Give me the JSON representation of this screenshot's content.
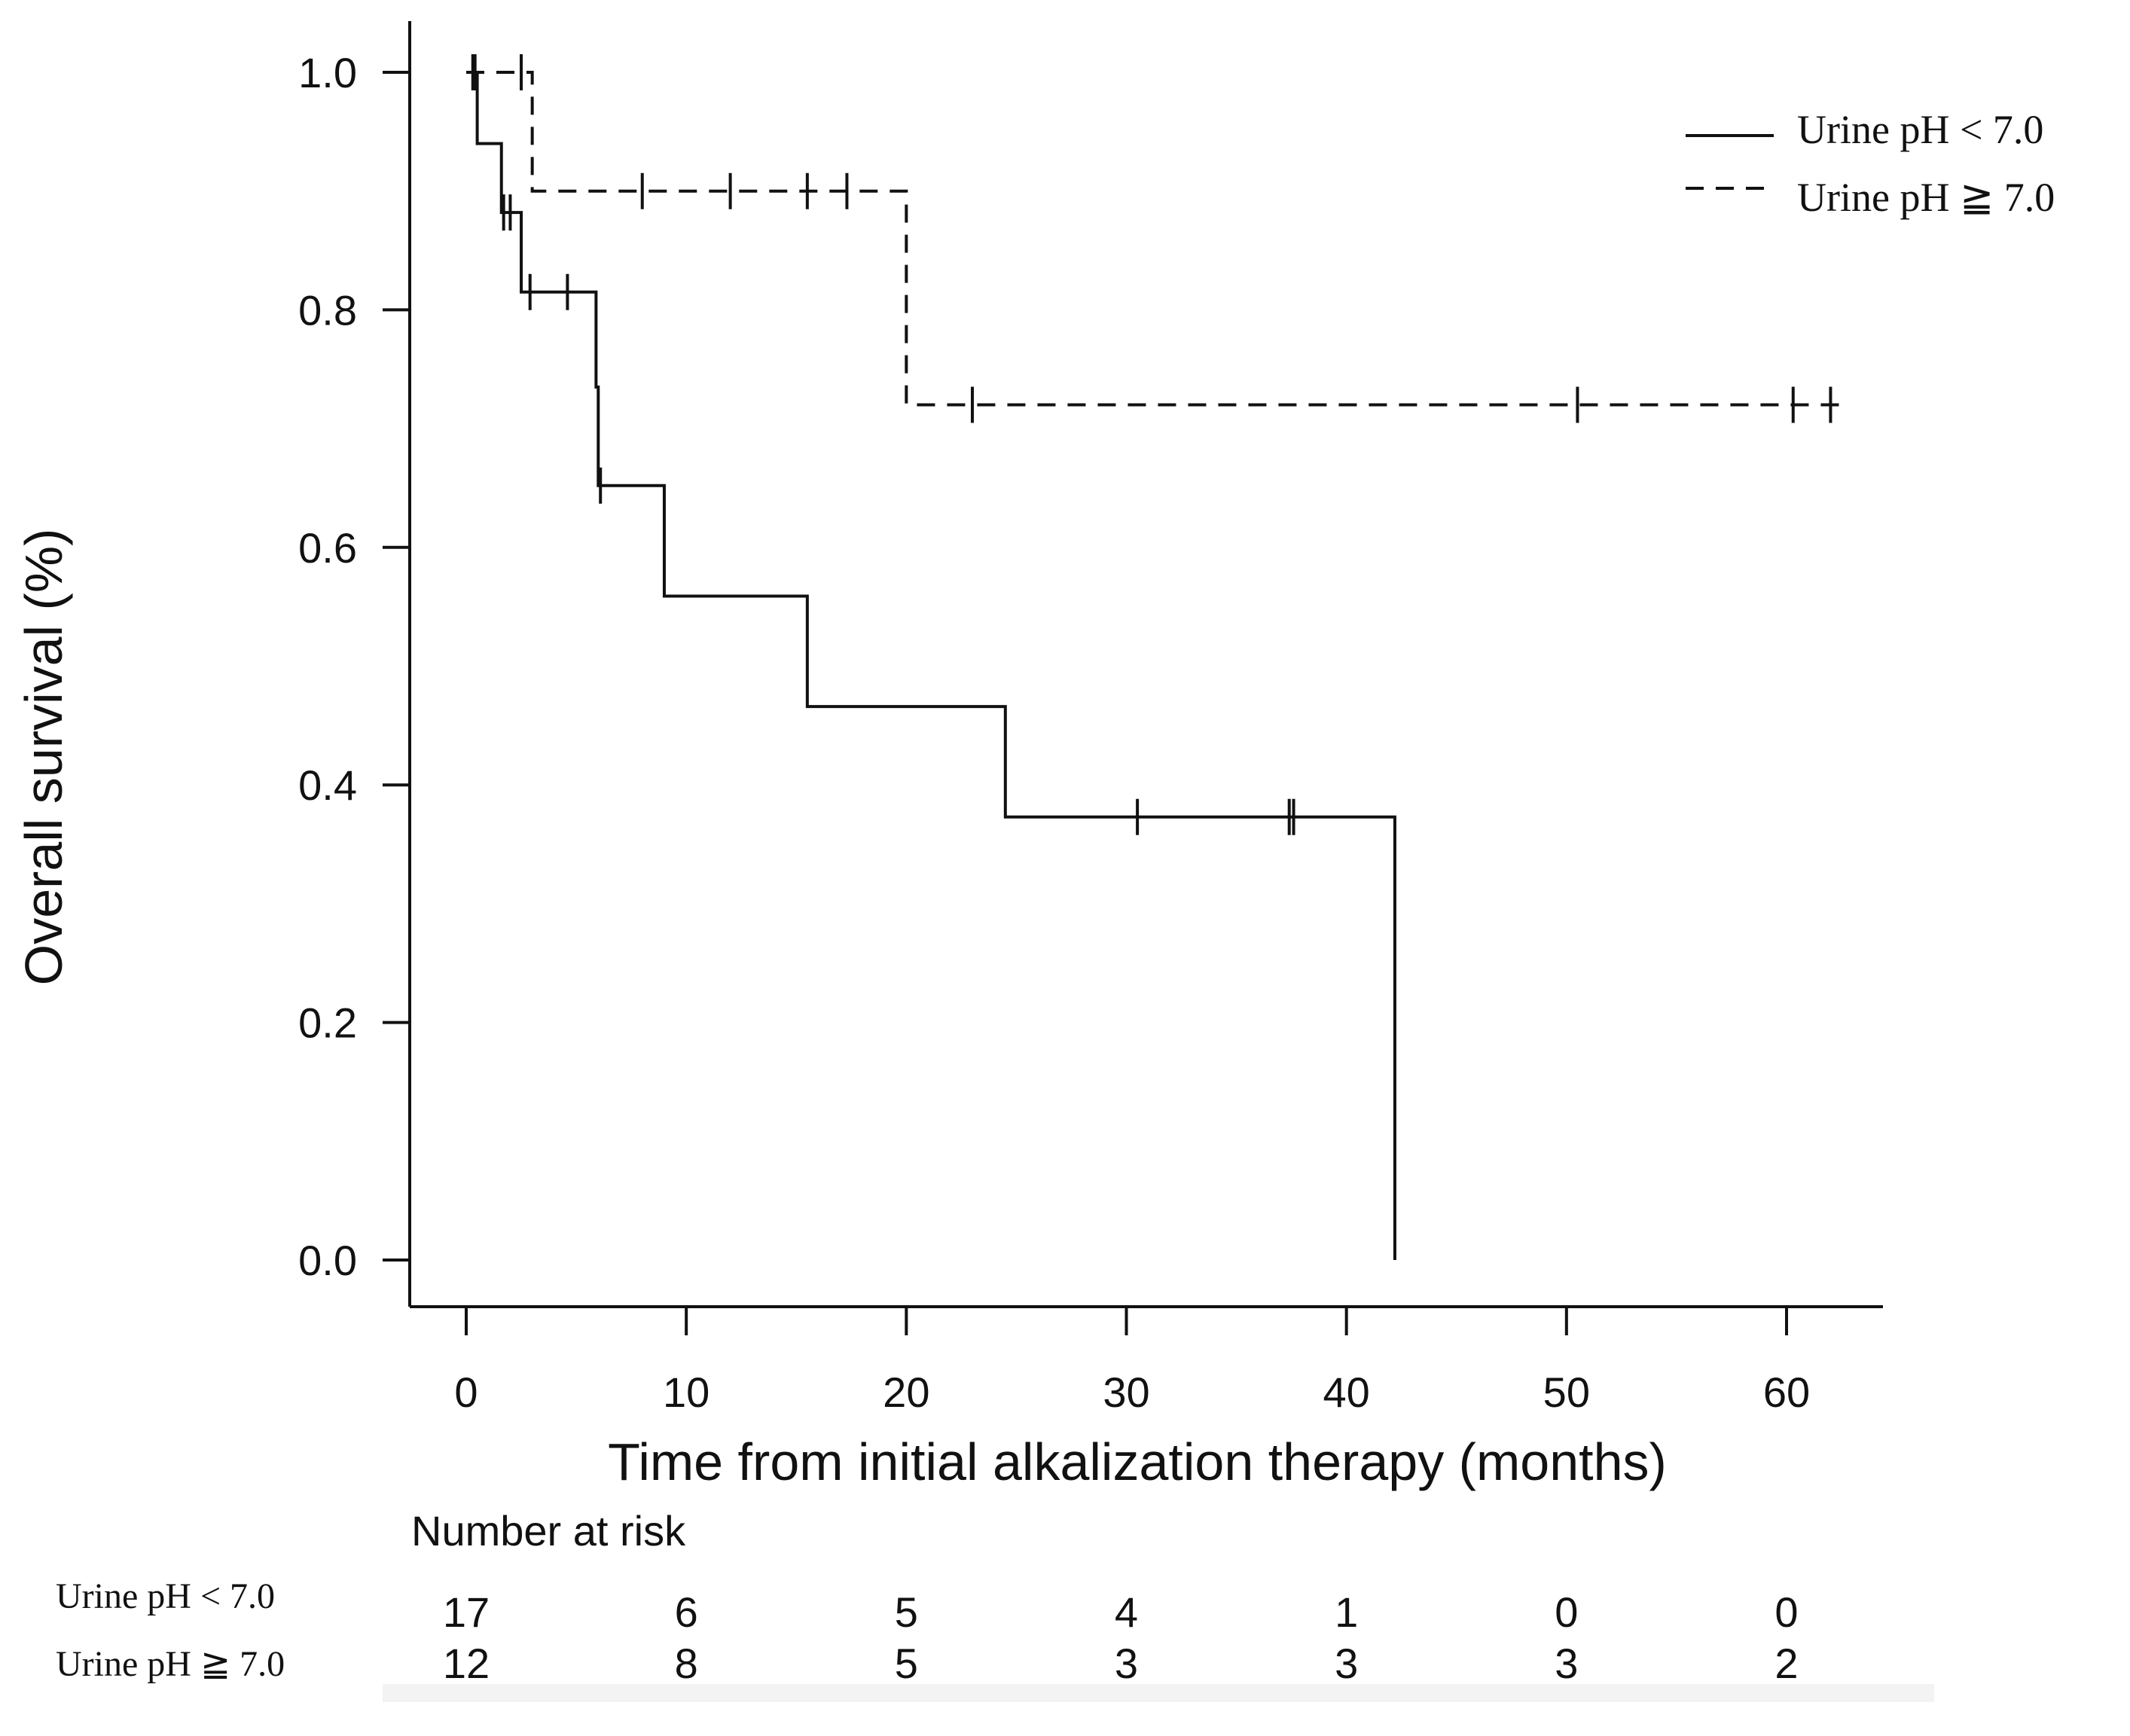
{
  "chart_data": {
    "type": "line",
    "subtype": "kaplan-meier",
    "title": "",
    "xlabel": "Time from initial alkalization therapy (months)",
    "ylabel": "Overall survival (%)",
    "xlim": [
      -2.5,
      64.5
    ],
    "ylim": [
      -0.08,
      1.08
    ],
    "x_ticks": [
      0,
      10,
      20,
      30,
      40,
      50,
      60
    ],
    "x_tick_labels": [
      "0",
      "10",
      "20",
      "30",
      "40",
      "50",
      "60"
    ],
    "y_ticks": [
      0.0,
      0.2,
      0.4,
      0.6,
      0.8,
      1.0
    ],
    "y_tick_labels": [
      "0.0",
      "0.2",
      "0.4",
      "0.6",
      "0.8",
      "1.0"
    ],
    "grid": false,
    "legend_position": "top-right",
    "series": [
      {
        "name": "Urine pH < 7.0",
        "line_style": "solid",
        "color": "#111111",
        "steps": [
          [
            0,
            1.0
          ],
          [
            0.5,
            0.94
          ],
          [
            1.6,
            0.882
          ],
          [
            2.5,
            0.815
          ],
          [
            5.9,
            0.735
          ],
          [
            6.0,
            0.652
          ],
          [
            9.0,
            0.559
          ],
          [
            15.5,
            0.466
          ],
          [
            24.5,
            0.373
          ],
          [
            42.2,
            0.0
          ]
        ],
        "end_x": 42.2,
        "censored": [
          [
            0.3,
            1.0
          ],
          [
            1.7,
            0.882
          ],
          [
            2.0,
            0.882
          ],
          [
            2.9,
            0.815
          ],
          [
            4.6,
            0.815
          ],
          [
            6.1,
            0.652
          ],
          [
            30.5,
            0.373
          ],
          [
            37.4,
            0.373
          ],
          [
            37.6,
            0.373
          ]
        ]
      },
      {
        "name": "Urine pH ≧ 7.0",
        "line_style": "dashed",
        "color": "#111111",
        "steps": [
          [
            0,
            1.0
          ],
          [
            3.0,
            0.9
          ],
          [
            20.0,
            0.72
          ]
        ],
        "end_x": 62.5,
        "censored": [
          [
            0.4,
            1.0
          ],
          [
            2.5,
            1.0
          ],
          [
            8.0,
            0.9
          ],
          [
            12.0,
            0.9
          ],
          [
            15.5,
            0.9
          ],
          [
            17.3,
            0.9
          ],
          [
            23.0,
            0.72
          ],
          [
            50.5,
            0.72
          ],
          [
            60.3,
            0.72
          ],
          [
            62.0,
            0.72
          ]
        ]
      }
    ]
  },
  "risk_table": {
    "title": "Number at risk",
    "times": [
      0,
      10,
      20,
      30,
      40,
      50,
      60
    ],
    "rows": [
      {
        "label": "Urine pH < 7.0",
        "values": [
          "17",
          "6",
          "5",
          "4",
          "1",
          "0",
          "0"
        ]
      },
      {
        "label": "Urine pH ≧ 7.0",
        "values": [
          "12",
          "8",
          "5",
          "3",
          "3",
          "3",
          "2"
        ]
      }
    ]
  }
}
